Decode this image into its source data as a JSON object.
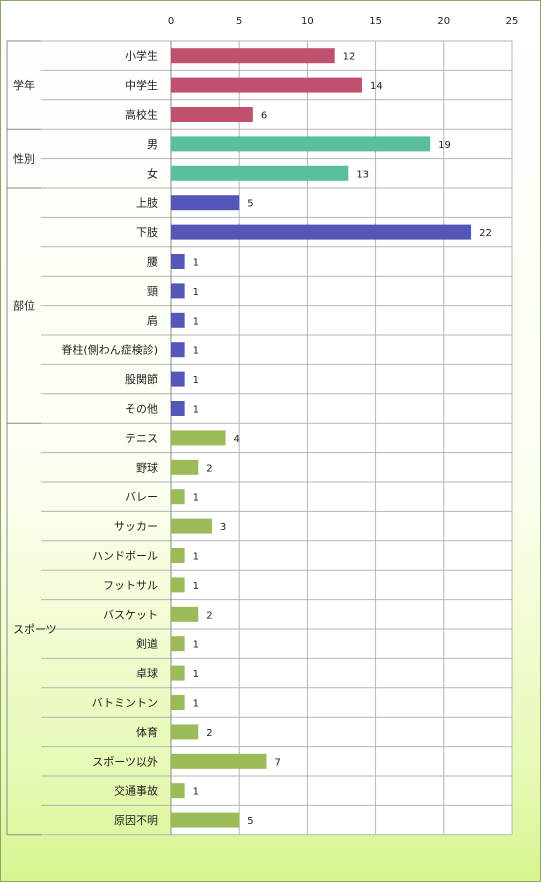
{
  "chart_data": {
    "type": "bar",
    "orientation": "horizontal",
    "xlim": [
      0,
      25
    ],
    "xticks": [
      0,
      5,
      10,
      15,
      20,
      25
    ],
    "grid": true,
    "groups": [
      {
        "name": "学年",
        "color": "#c0506e",
        "categories": [
          "小学生",
          "中学生",
          "高校生"
        ],
        "values": [
          12,
          14,
          6
        ]
      },
      {
        "name": "性別",
        "color": "#5bbf9f",
        "categories": [
          "男",
          "女"
        ],
        "values": [
          19,
          13
        ]
      },
      {
        "name": "部位",
        "color": "#5557b8",
        "categories": [
          "上肢",
          "下肢",
          "腰",
          "頸",
          "肩",
          "脊柱(側わん症検診)",
          "股関節",
          "その他"
        ],
        "values": [
          5,
          22,
          1,
          1,
          1,
          1,
          1,
          1
        ]
      },
      {
        "name": "スポーツ",
        "color": "#9bbb59",
        "categories": [
          "テニス",
          "野球",
          "バレー",
          "サッカー",
          "ハンドボール",
          "フットサル",
          "バスケット",
          "剣道",
          "卓球",
          "バトミントン",
          "体育",
          "スポーツ以外",
          "交通事故",
          "原因不明"
        ],
        "values": [
          4,
          2,
          1,
          3,
          1,
          1,
          2,
          1,
          1,
          1,
          2,
          7,
          1,
          5
        ]
      }
    ]
  }
}
